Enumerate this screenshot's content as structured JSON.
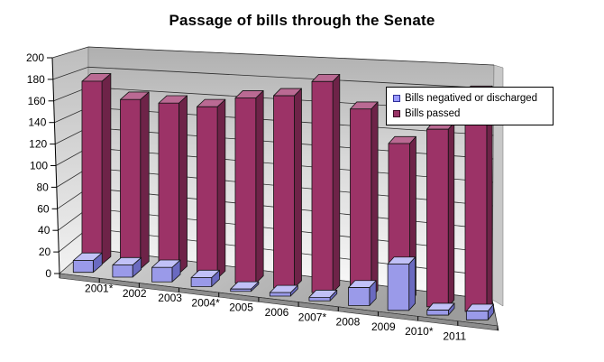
{
  "title": "Passage of bills through the Senate",
  "chart_data": {
    "type": "bar",
    "variant": "3d-column-depth-rows",
    "title": "Passage of bills through the Senate",
    "categories": [
      "2001*",
      "2002",
      "2003",
      "2004*",
      "2005",
      "2006",
      "2007*",
      "2008",
      "2009",
      "2010*",
      "2011"
    ],
    "series": [
      {
        "name": "Bills negatived or discharged",
        "color": "#9999FF",
        "values": [
          11,
          11,
          13,
          8,
          2,
          3,
          3,
          15,
          38,
          4,
          7
        ]
      },
      {
        "name": "Bills passed",
        "color": "#993366",
        "values": [
          173,
          157,
          155,
          153,
          162,
          165,
          178,
          156,
          129,
          142,
          172
        ]
      }
    ],
    "xlabel": "",
    "ylabel": "",
    "ylim": [
      0,
      200
    ],
    "ytick_step": 20,
    "ytick_labels": [
      "0",
      "20",
      "40",
      "60",
      "80",
      "100",
      "120",
      "140",
      "160",
      "180",
      "200"
    ],
    "grid": true,
    "legend_position": "top-right",
    "wall_color_top": "#B3B3B3",
    "wall_color_bottom": "#FBFBFB",
    "floor_color_left": "#D4D4D4",
    "floor_color_right": "#9E9E9E",
    "axis_color": "#000000",
    "background_color": "#FFFFFF"
  }
}
